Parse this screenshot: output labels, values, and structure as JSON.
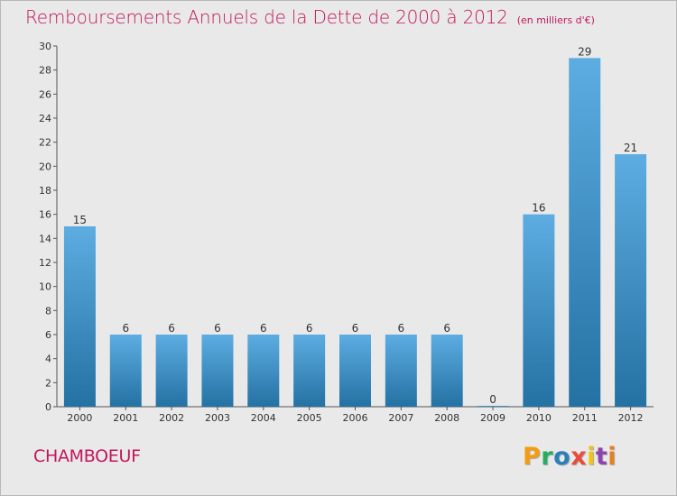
{
  "header": {
    "title": "Remboursements Annuels de la Dette de 2000 à 2012",
    "subtitle": "(en milliers d'€)"
  },
  "footer": {
    "commune": "CHAMBOEUF",
    "brand": {
      "letters": [
        "P",
        "r",
        "o",
        "x",
        "i",
        "t",
        "i"
      ],
      "colors": [
        "#f39c12",
        "#27ae60",
        "#2980b9",
        "#e74c3c",
        "#f1c40f",
        "#8e44ad",
        "#e67e22"
      ]
    }
  },
  "chart_data": {
    "type": "bar",
    "categories": [
      "2000",
      "2001",
      "2002",
      "2003",
      "2004",
      "2005",
      "2006",
      "2007",
      "2008",
      "2009",
      "2010",
      "2011",
      "2012"
    ],
    "values": [
      15,
      6,
      6,
      6,
      6,
      6,
      6,
      6,
      6,
      0,
      16,
      29,
      21
    ],
    "value_labels": [
      "15",
      "6",
      "6",
      "6",
      "6",
      "6",
      "6",
      "6",
      "6",
      "0",
      "16",
      "29",
      "21"
    ],
    "ylim": [
      0,
      30
    ],
    "yticks": [
      0,
      2,
      4,
      6,
      8,
      10,
      12,
      14,
      16,
      18,
      20,
      22,
      24,
      26,
      28,
      30
    ],
    "grid": false,
    "colors": {
      "bar_top": "#5dade2",
      "bar_bottom": "#2471a3",
      "axis": "#555555"
    }
  }
}
